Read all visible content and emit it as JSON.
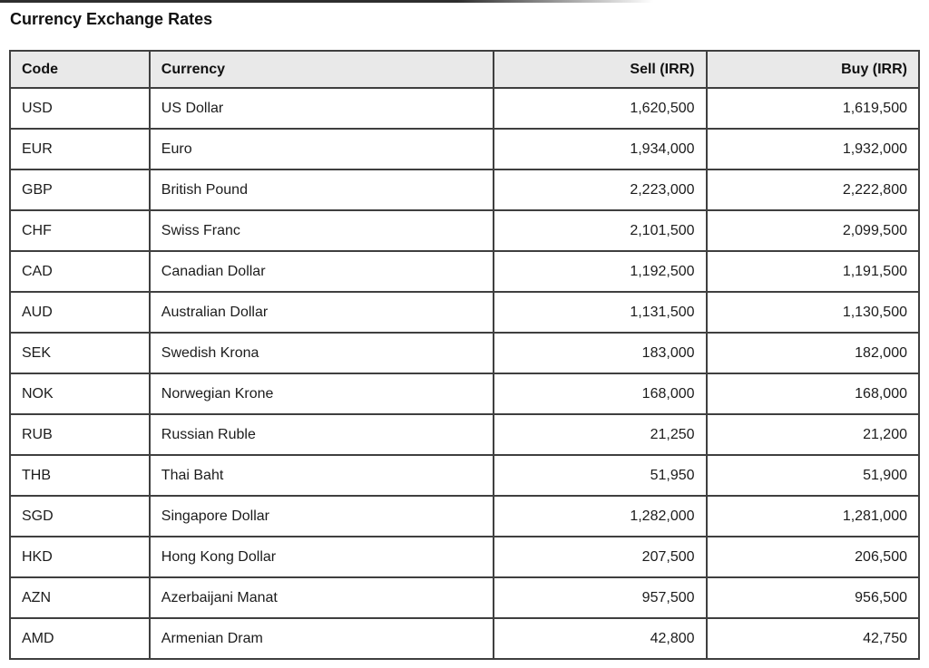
{
  "page": {
    "title": "Currency Exchange Rates"
  },
  "table": {
    "headers": {
      "code": "Code",
      "currency": "Currency",
      "sell": "Sell (IRR)",
      "buy": "Buy (IRR)"
    },
    "rows": [
      {
        "code": "USD",
        "currency": "US Dollar",
        "sell": "1,620,500",
        "buy": "1,619,500"
      },
      {
        "code": "EUR",
        "currency": "Euro",
        "sell": "1,934,000",
        "buy": "1,932,000"
      },
      {
        "code": "GBP",
        "currency": "British Pound",
        "sell": "2,223,000",
        "buy": "2,222,800"
      },
      {
        "code": "CHF",
        "currency": "Swiss Franc",
        "sell": "2,101,500",
        "buy": "2,099,500"
      },
      {
        "code": "CAD",
        "currency": "Canadian Dollar",
        "sell": "1,192,500",
        "buy": "1,191,500"
      },
      {
        "code": "AUD",
        "currency": "Australian Dollar",
        "sell": "1,131,500",
        "buy": "1,130,500"
      },
      {
        "code": "SEK",
        "currency": "Swedish Krona",
        "sell": "183,000",
        "buy": "182,000"
      },
      {
        "code": "NOK",
        "currency": "Norwegian Krone",
        "sell": "168,000",
        "buy": "168,000"
      },
      {
        "code": "RUB",
        "currency": "Russian Ruble",
        "sell": "21,250",
        "buy": "21,200"
      },
      {
        "code": "THB",
        "currency": "Thai Baht",
        "sell": "51,950",
        "buy": "51,900"
      },
      {
        "code": "SGD",
        "currency": "Singapore Dollar",
        "sell": "1,282,000",
        "buy": "1,281,000"
      },
      {
        "code": "HKD",
        "currency": "Hong Kong Dollar",
        "sell": "207,500",
        "buy": "206,500"
      },
      {
        "code": "AZN",
        "currency": "Azerbaijani Manat",
        "sell": "957,500",
        "buy": "956,500"
      },
      {
        "code": "AMD",
        "currency": "Armenian Dram",
        "sell": "42,800",
        "buy": "42,750"
      }
    ]
  },
  "colors": {
    "page_bg": "#ffffff",
    "text": "#1c1c1c",
    "border": "#3f3f3f",
    "header_bg": "#e9e9e9"
  }
}
